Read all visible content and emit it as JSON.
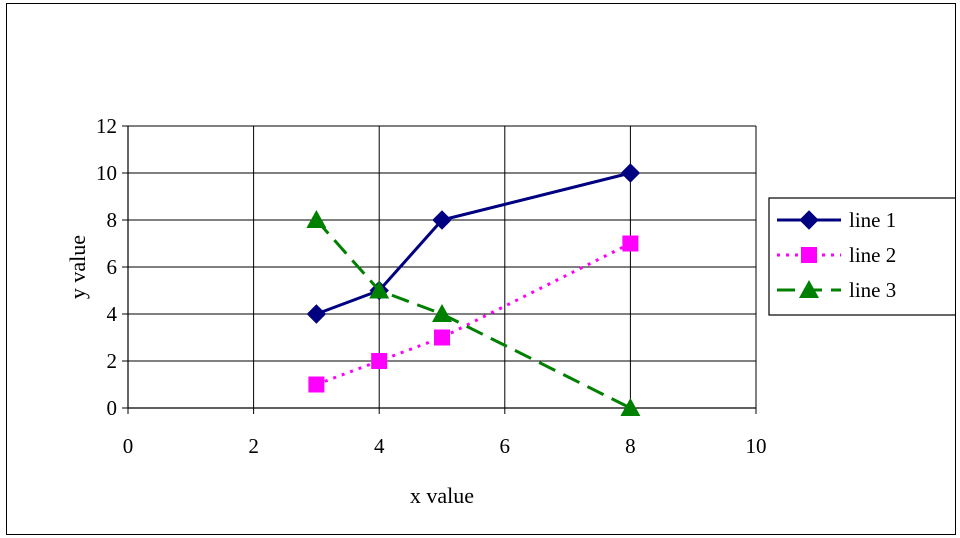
{
  "chart_data": {
    "type": "line",
    "title": "",
    "xlabel": "x value",
    "ylabel": "y value",
    "xlim": [
      0,
      10
    ],
    "ylim": [
      0,
      12
    ],
    "xticks": [
      0,
      2,
      4,
      6,
      8,
      10
    ],
    "yticks": [
      0,
      2,
      4,
      6,
      8,
      10,
      12
    ],
    "grid": true,
    "legend_position": "right",
    "series": [
      {
        "name": "line 1",
        "color": "#000080",
        "marker": "diamond",
        "dash": "solid",
        "x": [
          3,
          4,
          5,
          8
        ],
        "y": [
          4,
          5,
          8,
          10
        ]
      },
      {
        "name": "line 2",
        "color": "#ff00ff",
        "marker": "square",
        "dash": "dotted",
        "x": [
          3,
          4,
          5,
          8
        ],
        "y": [
          1,
          2,
          3,
          7
        ]
      },
      {
        "name": "line 3",
        "color": "#008000",
        "marker": "triangle",
        "dash": "dashed",
        "x": [
          3,
          4,
          5,
          8
        ],
        "y": [
          8,
          5,
          4,
          0
        ]
      }
    ]
  }
}
